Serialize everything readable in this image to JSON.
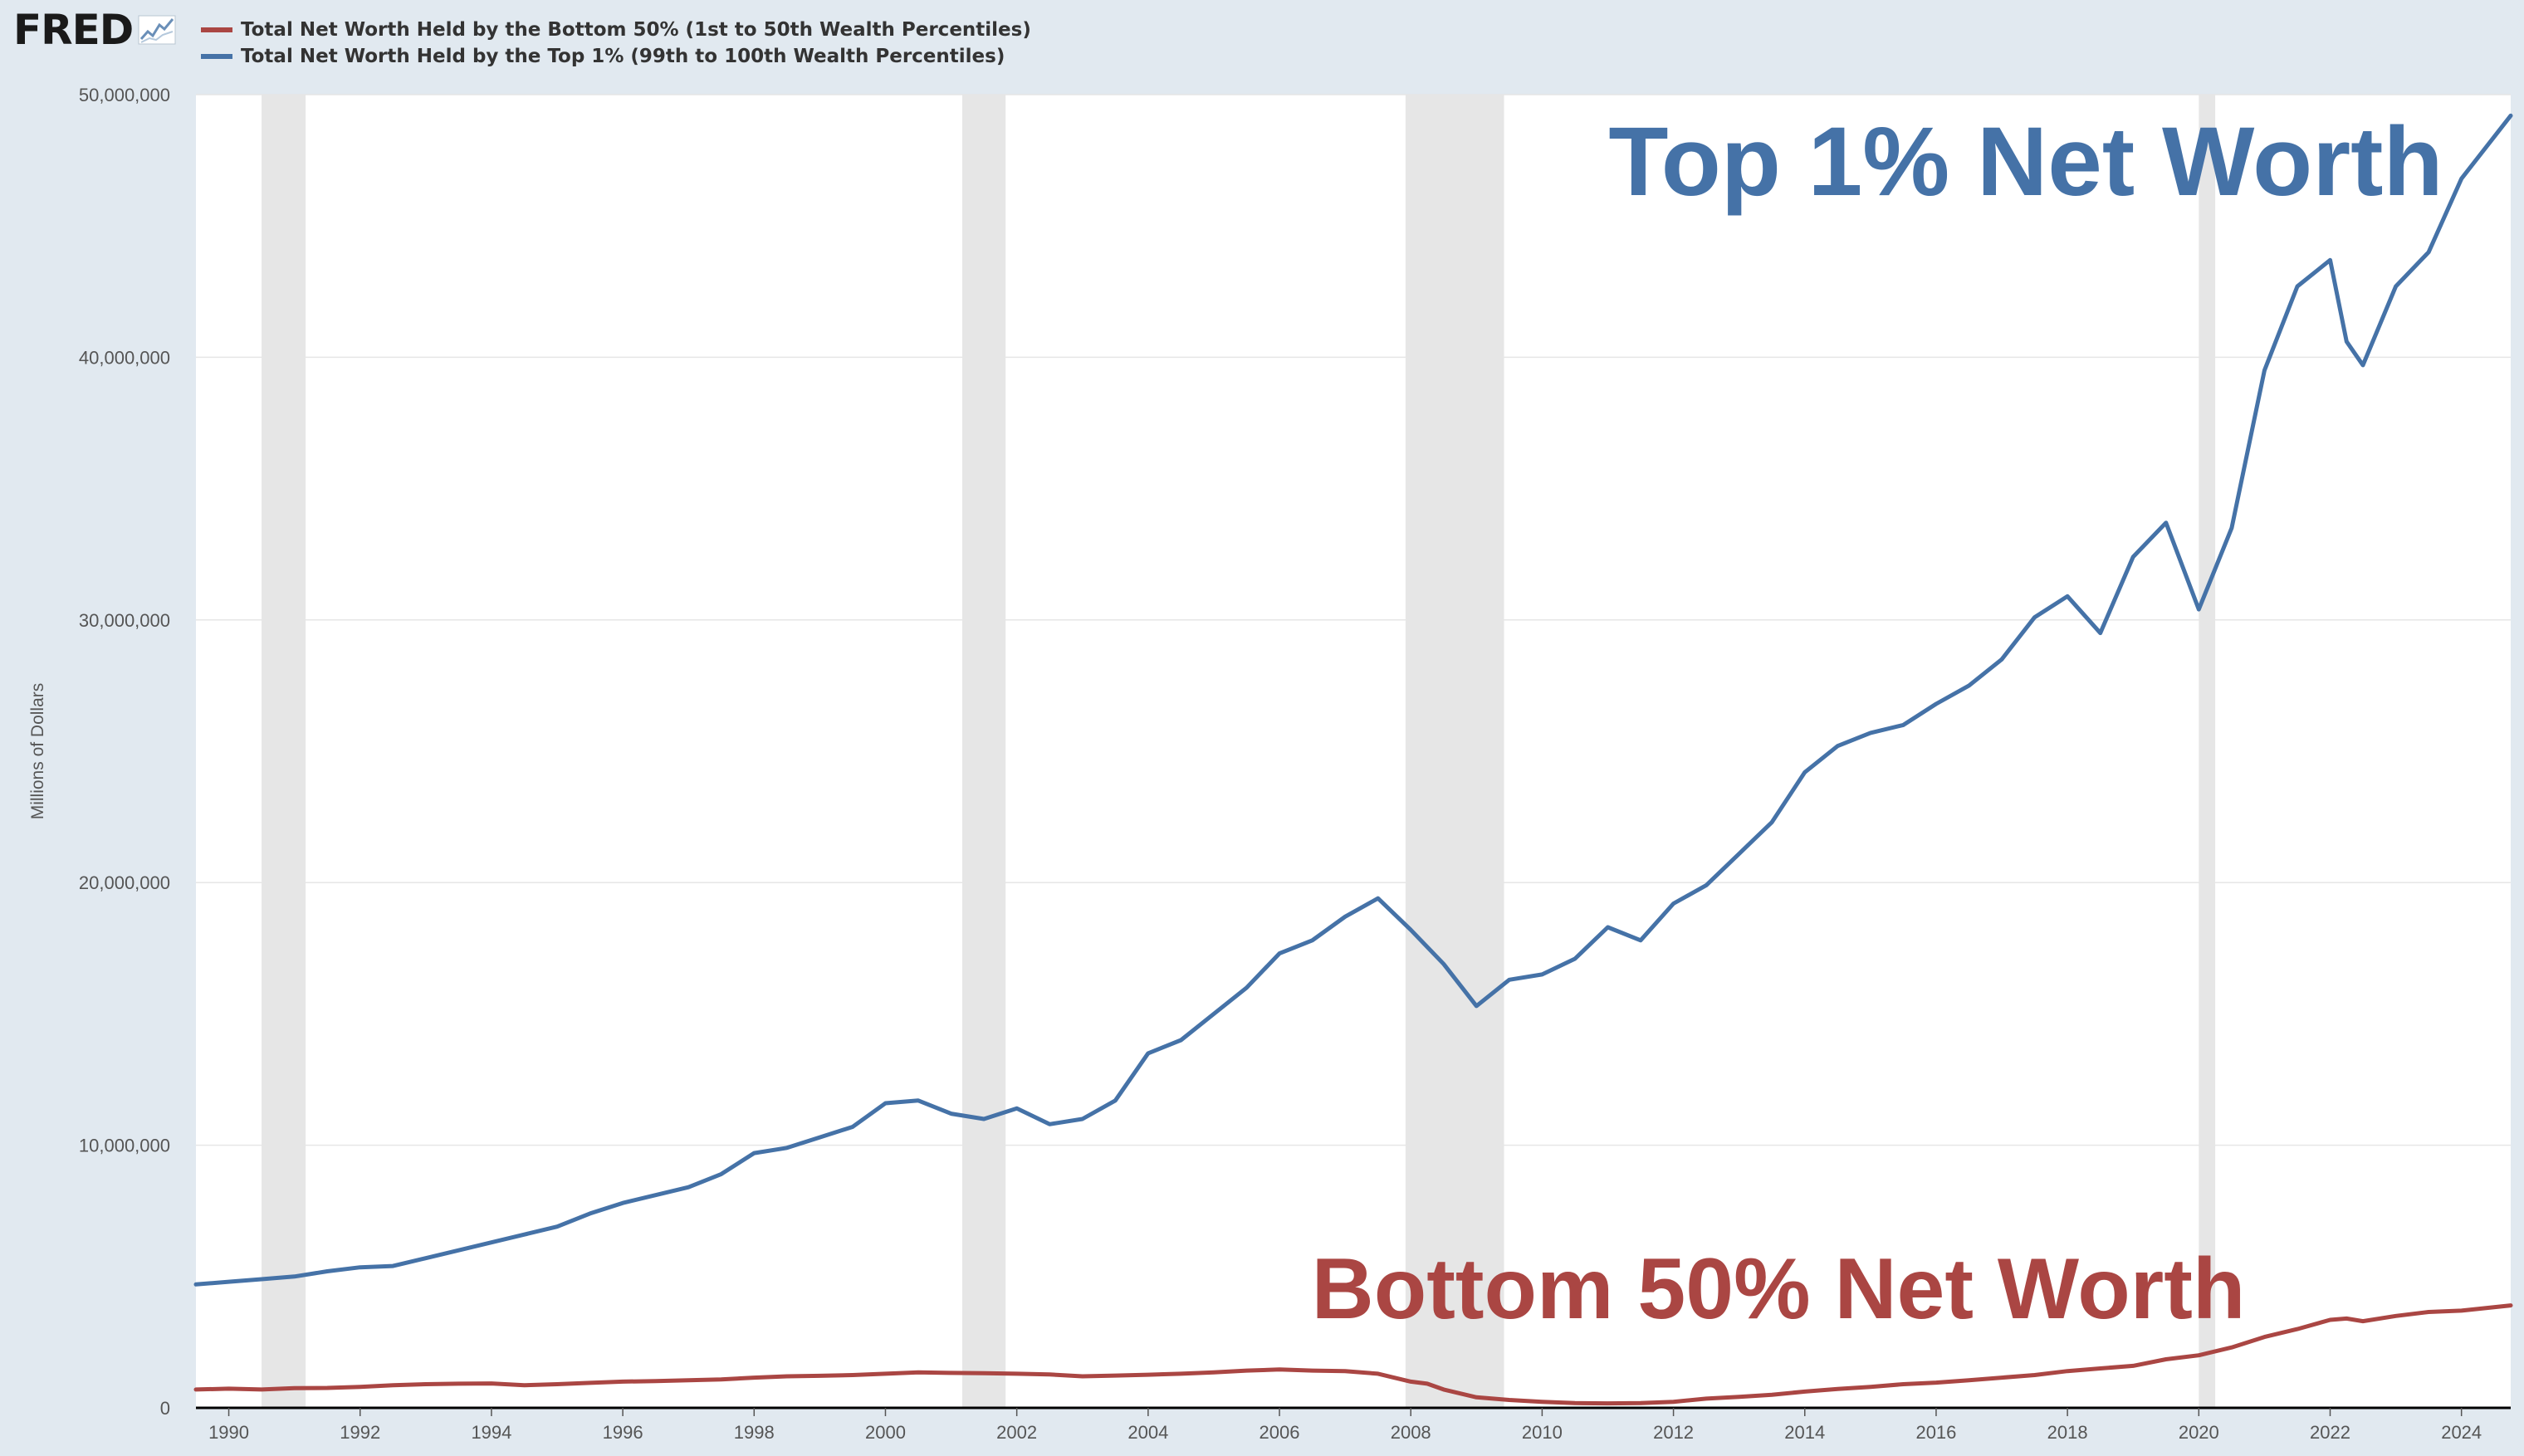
{
  "header": {
    "logo_text": "FRED",
    "logo_icon": "line-graph-icon"
  },
  "colors": {
    "background": "#e1e9f0",
    "plot_background": "#ffffff",
    "bottom_50": "#aa4643",
    "top_1": "#4572a7",
    "recession": "#e6e6e6"
  },
  "chart_data": {
    "type": "line",
    "xlabel": "",
    "ylabel": "Millions of Dollars",
    "xlim": [
      1989.5,
      2024.75
    ],
    "ylim": [
      0,
      50000000
    ],
    "y_ticks": [
      0,
      10000000,
      20000000,
      30000000,
      40000000,
      50000000
    ],
    "y_tick_labels": [
      "0",
      "10,000,000",
      "20,000,000",
      "30,000,000",
      "40,000,000",
      "50,000,000"
    ],
    "x_ticks": [
      1990,
      1992,
      1994,
      1996,
      1998,
      2000,
      2002,
      2004,
      2006,
      2008,
      2010,
      2012,
      2014,
      2016,
      2018,
      2020,
      2022,
      2024
    ],
    "x_tick_labels": [
      "1990",
      "1992",
      "1994",
      "1996",
      "1998",
      "2000",
      "2002",
      "2004",
      "2006",
      "2008",
      "2010",
      "2012",
      "2014",
      "2016",
      "2018",
      "2020",
      "2022",
      "2024"
    ],
    "grid": "horizontal",
    "legend_position": "top-left",
    "recessions": [
      [
        1990.5,
        1991.17
      ],
      [
        2001.17,
        2001.83
      ],
      [
        2007.92,
        2009.42
      ],
      [
        2020.0,
        2020.25
      ]
    ],
    "annotations": [
      {
        "text": "Top 1% Net Worth",
        "series": "top_1"
      },
      {
        "text": "Bottom 50% Net Worth",
        "series": "bottom_50"
      }
    ],
    "series": [
      {
        "key": "bottom_50",
        "name": "Total Net Worth Held by the Bottom 50% (1st to 50th Wealth Percentiles)",
        "color": "#aa4643",
        "points": [
          [
            1989.5,
            700000
          ],
          [
            1990,
            730000
          ],
          [
            1990.5,
            700000
          ],
          [
            1991,
            750000
          ],
          [
            1991.5,
            760000
          ],
          [
            1992,
            800000
          ],
          [
            1992.5,
            860000
          ],
          [
            1993,
            900000
          ],
          [
            1993.5,
            920000
          ],
          [
            1994,
            930000
          ],
          [
            1994.5,
            860000
          ],
          [
            1995,
            900000
          ],
          [
            1995.5,
            950000
          ],
          [
            1996,
            1000000
          ],
          [
            1996.5,
            1020000
          ],
          [
            1997,
            1050000
          ],
          [
            1997.5,
            1080000
          ],
          [
            1998,
            1150000
          ],
          [
            1998.5,
            1200000
          ],
          [
            1999,
            1220000
          ],
          [
            1999.5,
            1250000
          ],
          [
            2000,
            1300000
          ],
          [
            2000.5,
            1350000
          ],
          [
            2001,
            1330000
          ],
          [
            2001.5,
            1320000
          ],
          [
            2002,
            1300000
          ],
          [
            2002.5,
            1270000
          ],
          [
            2003,
            1200000
          ],
          [
            2003.5,
            1230000
          ],
          [
            2004,
            1260000
          ],
          [
            2004.5,
            1300000
          ],
          [
            2005,
            1350000
          ],
          [
            2005.5,
            1420000
          ],
          [
            2006,
            1460000
          ],
          [
            2006.5,
            1420000
          ],
          [
            2007,
            1400000
          ],
          [
            2007.5,
            1300000
          ],
          [
            2008,
            1000000
          ],
          [
            2008.25,
            920000
          ],
          [
            2008.5,
            700000
          ],
          [
            2009,
            400000
          ],
          [
            2009.5,
            300000
          ],
          [
            2010,
            230000
          ],
          [
            2010.5,
            180000
          ],
          [
            2011,
            170000
          ],
          [
            2011.5,
            180000
          ],
          [
            2012,
            230000
          ],
          [
            2012.5,
            350000
          ],
          [
            2013,
            420000
          ],
          [
            2013.5,
            500000
          ],
          [
            2014,
            620000
          ],
          [
            2014.5,
            720000
          ],
          [
            2015,
            800000
          ],
          [
            2015.5,
            900000
          ],
          [
            2016,
            960000
          ],
          [
            2016.5,
            1050000
          ],
          [
            2017,
            1150000
          ],
          [
            2017.5,
            1250000
          ],
          [
            2018,
            1400000
          ],
          [
            2018.5,
            1500000
          ],
          [
            2019,
            1600000
          ],
          [
            2019.5,
            1850000
          ],
          [
            2020,
            2000000
          ],
          [
            2020.5,
            2300000
          ],
          [
            2021,
            2700000
          ],
          [
            2021.5,
            3000000
          ],
          [
            2022,
            3350000
          ],
          [
            2022.25,
            3400000
          ],
          [
            2022.5,
            3300000
          ],
          [
            2023,
            3500000
          ],
          [
            2023.5,
            3650000
          ],
          [
            2024,
            3700000
          ],
          [
            2024.75,
            3900000
          ]
        ]
      },
      {
        "key": "top_1",
        "name": "Total Net Worth Held by the Top 1% (99th to 100th Wealth Percentiles)",
        "color": "#4572a7",
        "points": [
          [
            1989.5,
            4700000
          ],
          [
            1990,
            4800000
          ],
          [
            1990.5,
            4900000
          ],
          [
            1991,
            5000000
          ],
          [
            1991.5,
            5200000
          ],
          [
            1992,
            5350000
          ],
          [
            1992.5,
            5400000
          ],
          [
            1993,
            5700000
          ],
          [
            1993.5,
            6000000
          ],
          [
            1994,
            6300000
          ],
          [
            1994.5,
            6600000
          ],
          [
            1995,
            6900000
          ],
          [
            1995.5,
            7400000
          ],
          [
            1996,
            7800000
          ],
          [
            1996.5,
            8100000
          ],
          [
            1997,
            8400000
          ],
          [
            1997.5,
            8900000
          ],
          [
            1998,
            9700000
          ],
          [
            1998.5,
            9900000
          ],
          [
            1999,
            10300000
          ],
          [
            1999.5,
            10700000
          ],
          [
            2000,
            11600000
          ],
          [
            2000.5,
            11700000
          ],
          [
            2001,
            11200000
          ],
          [
            2001.5,
            11000000
          ],
          [
            2002,
            11400000
          ],
          [
            2002.5,
            10800000
          ],
          [
            2003,
            11000000
          ],
          [
            2003.5,
            11700000
          ],
          [
            2004,
            13500000
          ],
          [
            2004.5,
            14000000
          ],
          [
            2005,
            15000000
          ],
          [
            2005.5,
            16000000
          ],
          [
            2006,
            17300000
          ],
          [
            2006.5,
            17800000
          ],
          [
            2007,
            18700000
          ],
          [
            2007.5,
            19400000
          ],
          [
            2008,
            18200000
          ],
          [
            2008.5,
            16900000
          ],
          [
            2009,
            15300000
          ],
          [
            2009.5,
            16300000
          ],
          [
            2010,
            16500000
          ],
          [
            2010.5,
            17100000
          ],
          [
            2011,
            18300000
          ],
          [
            2011.5,
            17800000
          ],
          [
            2012,
            19200000
          ],
          [
            2012.5,
            19900000
          ],
          [
            2013,
            21100000
          ],
          [
            2013.5,
            22300000
          ],
          [
            2014,
            24200000
          ],
          [
            2014.5,
            25200000
          ],
          [
            2015,
            25700000
          ],
          [
            2015.5,
            26000000
          ],
          [
            2016,
            26800000
          ],
          [
            2016.5,
            27500000
          ],
          [
            2017,
            28500000
          ],
          [
            2017.5,
            30100000
          ],
          [
            2018,
            30900000
          ],
          [
            2018.5,
            29500000
          ],
          [
            2019,
            32400000
          ],
          [
            2019.5,
            33700000
          ],
          [
            2020,
            30400000
          ],
          [
            2020.5,
            33500000
          ],
          [
            2021,
            39500000
          ],
          [
            2021.5,
            42700000
          ],
          [
            2022,
            43700000
          ],
          [
            2022.25,
            40600000
          ],
          [
            2022.5,
            39700000
          ],
          [
            2023,
            42700000
          ],
          [
            2023.5,
            44000000
          ],
          [
            2024,
            46800000
          ],
          [
            2024.75,
            49200000
          ]
        ]
      }
    ]
  }
}
